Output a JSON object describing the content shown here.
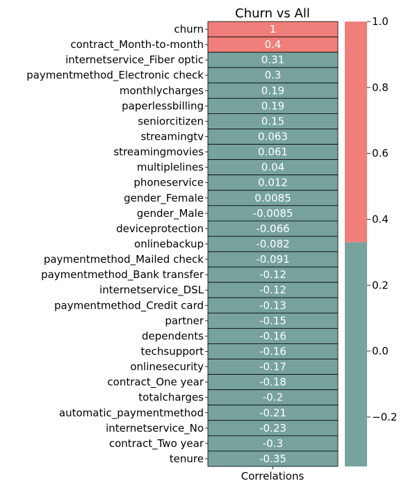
{
  "chart_data": {
    "type": "heatmap",
    "title": "Churn vs All",
    "xlabel": "Correlations",
    "ylabel": "",
    "columns": [
      "Correlations"
    ],
    "rows": [
      "churn",
      "contract_Month-to-month",
      "internetservice_Fiber optic",
      "paymentmethod_Electronic check",
      "monthlycharges",
      "paperlessbilling",
      "seniorcitizen",
      "streamingtv",
      "streamingmovies",
      "multiplelines",
      "phoneservice",
      "gender_Female",
      "gender_Male",
      "deviceprotection",
      "onlinebackup",
      "paymentmethod_Mailed check",
      "paymentmethod_Bank transfer",
      "internetservice_DSL",
      "paymentmethod_Credit card",
      "partner",
      "dependents",
      "techsupport",
      "onlinesecurity",
      "contract_One year",
      "totalcharges",
      "automatic_paymentmethod",
      "internetservice_No",
      "contract_Two year",
      "tenure"
    ],
    "values": [
      1,
      0.4,
      0.31,
      0.3,
      0.19,
      0.19,
      0.15,
      0.063,
      0.061,
      0.04,
      0.012,
      0.0085,
      -0.0085,
      -0.066,
      -0.082,
      -0.091,
      -0.12,
      -0.12,
      -0.13,
      -0.15,
      -0.16,
      -0.16,
      -0.17,
      -0.18,
      -0.2,
      -0.21,
      -0.23,
      -0.3,
      -0.35
    ],
    "value_labels": [
      "1",
      "0.4",
      "0.31",
      "0.3",
      "0.19",
      "0.19",
      "0.15",
      "0.063",
      "0.061",
      "0.04",
      "0.012",
      "0.0085",
      "-0.0085",
      "-0.066",
      "-0.082",
      "-0.091",
      "-0.12",
      "-0.12",
      "-0.13",
      "-0.15",
      "-0.16",
      "-0.16",
      "-0.17",
      "-0.18",
      "-0.2",
      "-0.21",
      "-0.23",
      "-0.3",
      "-0.35"
    ],
    "colormap": {
      "colors": [
        "#77a29e",
        "#f07f7b"
      ],
      "threshold": 0.33,
      "vmin": -0.35,
      "vmax": 1.0
    },
    "colorbar": {
      "ticks": [
        -0.2,
        0.0,
        0.2,
        0.4,
        0.6,
        0.8,
        1.0
      ],
      "tick_labels": [
        "−0.2",
        "0.0",
        "0.2",
        "0.4",
        "0.6",
        "0.8",
        "1.0"
      ]
    },
    "annotation_color": "#ffffff",
    "cell_border_color": "#000000",
    "legend": "colorbar-right"
  }
}
